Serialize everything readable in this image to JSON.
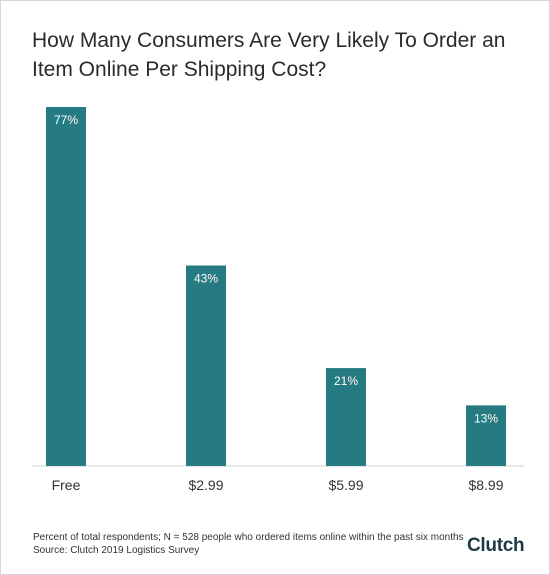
{
  "chart_data": {
    "type": "bar",
    "title": "How Many Consumers Are Very Likely To Order an Item Online Per Shipping Cost?",
    "categories": [
      "Free",
      "$2.99",
      "$5.99",
      "$8.99"
    ],
    "values": [
      77,
      43,
      21,
      13
    ],
    "data_labels": [
      "77%",
      "43%",
      "21%",
      "13%"
    ],
    "xlabel": "",
    "ylabel": "",
    "ylim": [
      0,
      77
    ],
    "grid": false,
    "legend": "none",
    "bar_color": "#267b82",
    "label_color": "#ffffff"
  },
  "footnote": {
    "line1": "Percent of total respondents; N = 528 people who ordered items online within the past six months",
    "line2": "Source: Clutch 2019 Logistics Survey"
  },
  "logo": {
    "text": "Clutch",
    "icon": "clutch-logo",
    "dot_color": "#e84a3a"
  }
}
